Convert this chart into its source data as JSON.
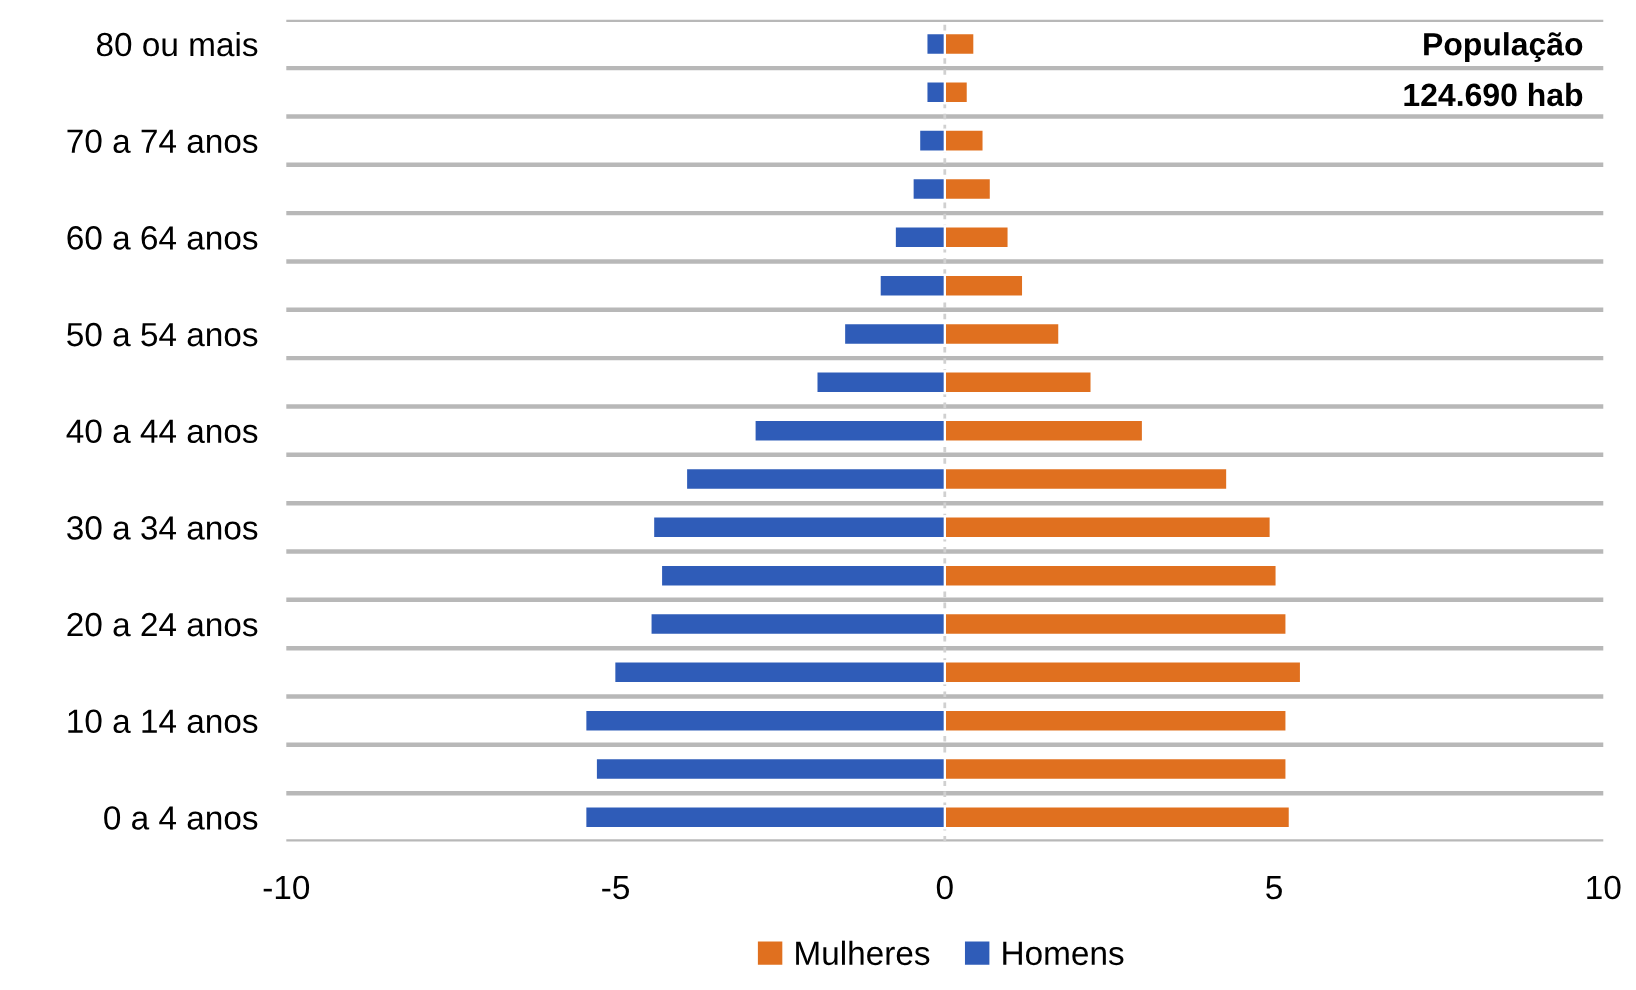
{
  "chart_data": {
    "type": "bar",
    "orientation": "horizontal",
    "categories": [
      "80 ou mais",
      null,
      "70 a 74 anos",
      null,
      "60 a 64 anos",
      null,
      "50 a 54 anos",
      null,
      "40 a 44 anos",
      null,
      "30 a 34 anos",
      null,
      "20 a 24 anos",
      null,
      "10 a 14 anos",
      null,
      "0 a 4 anos"
    ],
    "series": [
      {
        "name": "Mulheres",
        "color": "#e0701f",
        "values": [
          0.45,
          0.35,
          0.59,
          0.7,
          0.97,
          1.19,
          1.74,
          2.23,
          3.01,
          4.29,
          4.95,
          5.04,
          5.19,
          5.41,
          5.19,
          5.19,
          5.24
        ]
      },
      {
        "name": "Homens",
        "color": "#2f5cb8",
        "values": [
          -0.28,
          -0.28,
          -0.39,
          -0.49,
          -0.76,
          -0.99,
          -1.53,
          -1.95,
          -2.89,
          -3.93,
          -4.43,
          -4.31,
          -4.47,
          -5.02,
          -5.46,
          -5.3,
          -5.46
        ]
      }
    ],
    "xlim": [
      -10,
      10
    ],
    "xticks": [
      -10,
      -5,
      0,
      5,
      10
    ],
    "grid": "y",
    "legend": "bottom",
    "stacked": true,
    "ref_lines": [
      {
        "axis": "x",
        "value": 0,
        "color": "#d0d0d0",
        "line_style": "dotted"
      }
    ],
    "annotations": [
      "População\n124.690 hab"
    ]
  }
}
